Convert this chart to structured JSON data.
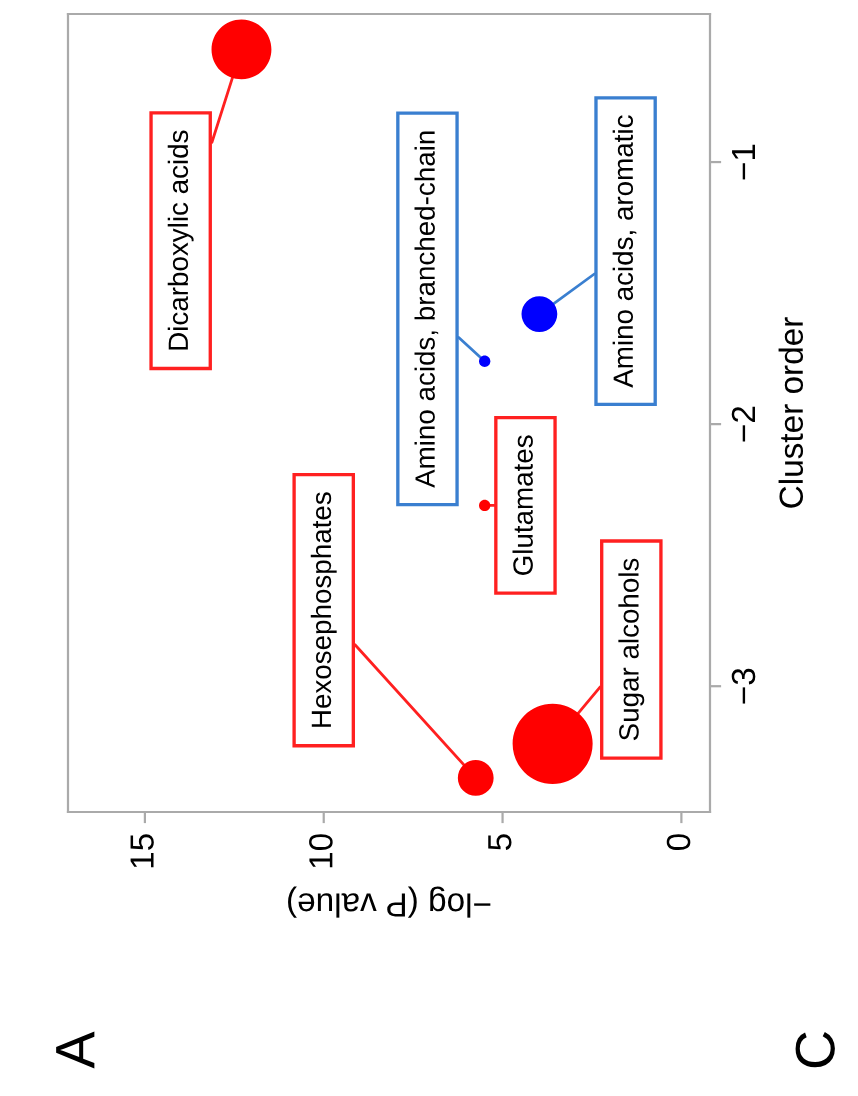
{
  "chart_data": {
    "type": "bubble",
    "xlabel": "−log (P value)",
    "ylabel": "Cluster order",
    "x": [
      12.3,
      5.75,
      5.5,
      5.5,
      3.97,
      3.6
    ],
    "values": [
      -0.57,
      -3.35,
      -1.76,
      -2.31,
      -1.58,
      -3.22
    ],
    "sizes": [
      0.56,
      0.2,
      0.02,
      0.02,
      0.2,
      1
    ],
    "colors": [
      "#ff0000",
      "#ff0000",
      "#0000ff",
      "#ff0000",
      "#0000ff",
      "#ff0000"
    ],
    "xlim": [
      17.15,
      -0.8
    ],
    "xticks": [
      15,
      10,
      5,
      0
    ],
    "ylim": [
      -3.48,
      -0.435
    ],
    "yticks": [
      {
        "value": -3,
        "label": "−3"
      },
      {
        "value": -2,
        "label": "−2"
      },
      {
        "value": -1,
        "label": "−1"
      }
    ],
    "grid": false,
    "annotations": [
      {
        "text": "Dicarboxylic acids",
        "x": 12.3,
        "y": -0.57
      },
      {
        "text": "Hexosephosphates",
        "x": 5.75,
        "y": -3.35
      },
      {
        "text": "Amino acids, branched-chain",
        "x": 5.5,
        "y": -1.76
      },
      {
        "text": "Glutamates",
        "x": 5.5,
        "y": -2.31
      },
      {
        "text": "Amino acids, aromatic",
        "x": 3.97,
        "y": -1.58
      },
      {
        "text": "Sugar alcohols",
        "x": 3.6,
        "y": -3.22
      },
      "A",
      "C"
    ]
  }
}
